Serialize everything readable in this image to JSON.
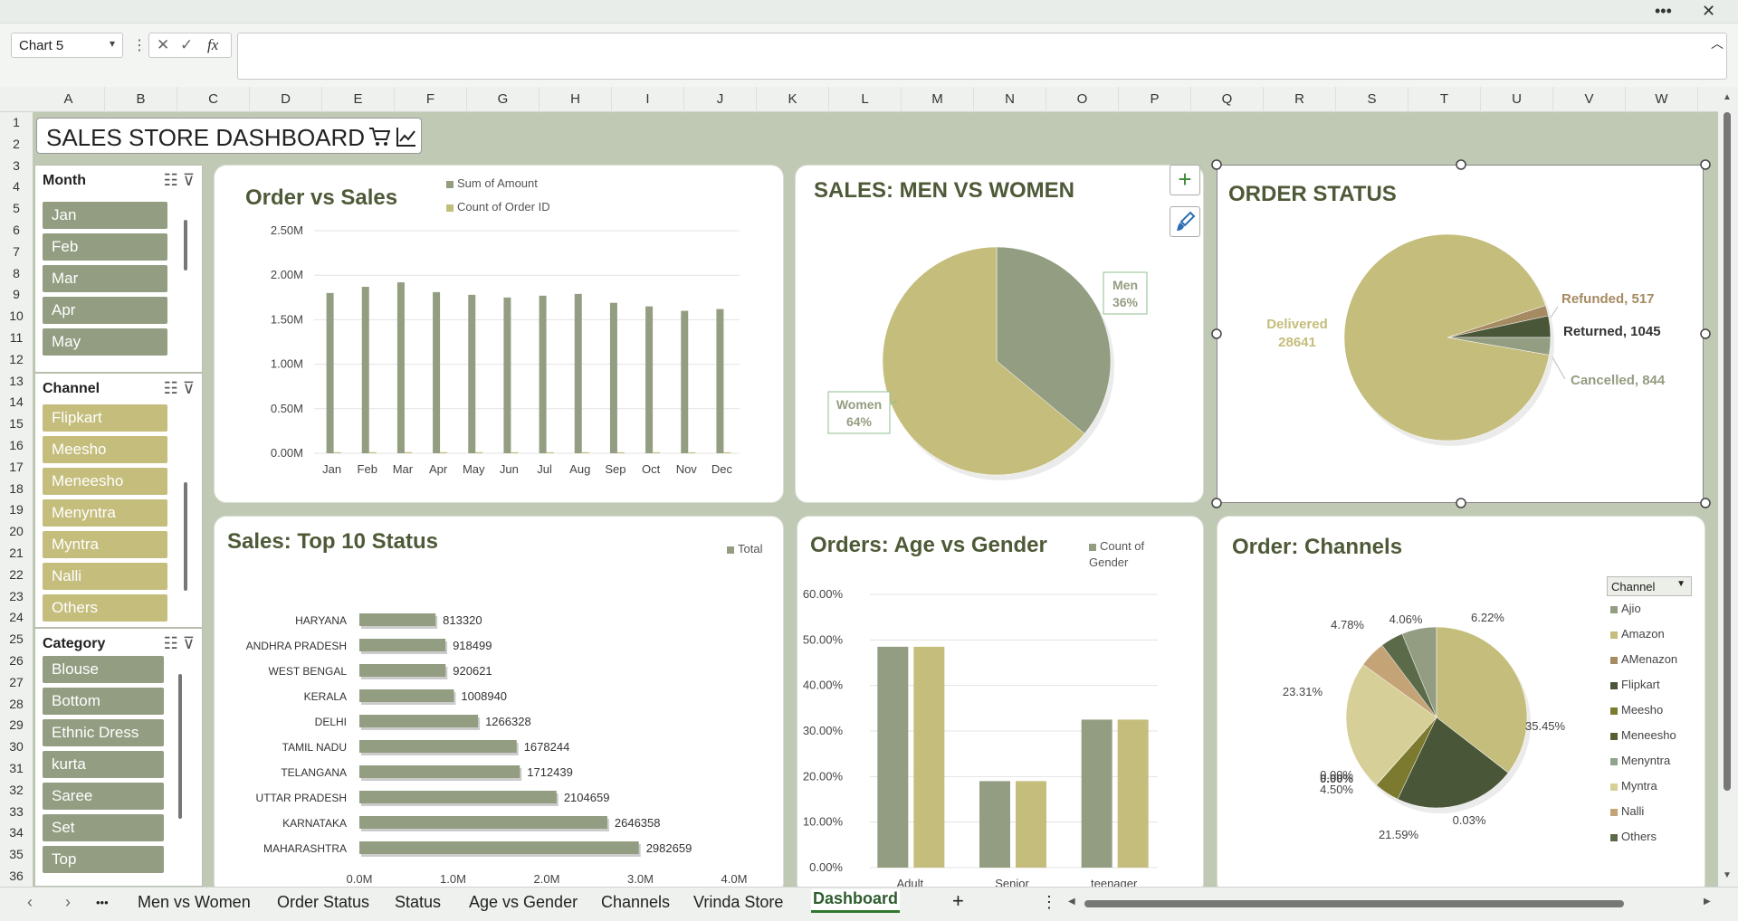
{
  "window": {
    "more_icon": "more-horizontal-icon",
    "close_icon": "close-icon"
  },
  "formula_bar": {
    "name_box": "Chart 5",
    "fx_label": "fx",
    "formula": ""
  },
  "columns": [
    "A",
    "B",
    "C",
    "D",
    "E",
    "F",
    "G",
    "H",
    "I",
    "J",
    "K",
    "L",
    "M",
    "N",
    "O",
    "P",
    "Q",
    "R",
    "S",
    "T",
    "U",
    "V",
    "W"
  ],
  "rows": [
    "1",
    "2",
    "3",
    "4",
    "5",
    "6",
    "7",
    "8",
    "9",
    "10",
    "11",
    "12",
    "13",
    "14",
    "15",
    "16",
    "17",
    "18",
    "19",
    "20",
    "21",
    "22",
    "23",
    "24",
    "25",
    "26",
    "27",
    "28",
    "29",
    "30",
    "31",
    "32",
    "33",
    "34",
    "35",
    "36"
  ],
  "dashboard": {
    "title": "SALES STORE DASHBOARD",
    "title_icons": [
      "cart-icon",
      "line-chart-icon"
    ]
  },
  "slicers": {
    "month": {
      "header": "Month",
      "items": [
        "Jan",
        "Feb",
        "Mar",
        "Apr",
        "May"
      ]
    },
    "channel": {
      "header": "Channel",
      "items": [
        "Flipkart",
        "Meesho",
        "Meneesho",
        "Menyntra",
        "Myntra",
        "Nalli",
        "Others"
      ]
    },
    "category": {
      "header": "Category",
      "items": [
        "Blouse",
        "Bottom",
        "Ethnic Dress",
        "kurta",
        "Saree",
        "Set",
        "Top"
      ]
    }
  },
  "colors": {
    "olive": "#939d81",
    "sand": "#c4bd7c",
    "bg": "#c0c9b4",
    "dark": "#4e5a37"
  },
  "chart_data": [
    {
      "id": "order_vs_sales",
      "type": "bar",
      "title": "Order vs Sales",
      "categories": [
        "Jan",
        "Feb",
        "Mar",
        "Apr",
        "May",
        "Jun",
        "Jul",
        "Aug",
        "Sep",
        "Oct",
        "Nov",
        "Dec"
      ],
      "series": [
        {
          "name": "Sum of Amount",
          "values": [
            1800000,
            1870000,
            1920000,
            1810000,
            1780000,
            1750000,
            1770000,
            1790000,
            1690000,
            1650000,
            1600000,
            1620000
          ]
        },
        {
          "name": "Count of Order ID",
          "values": [
            12000,
            12500,
            12800,
            12100,
            11900,
            11700,
            11800,
            11900,
            11300,
            11000,
            10700,
            10800
          ]
        }
      ],
      "ylim": [
        0,
        2500000
      ],
      "yticks": [
        "0.00M",
        "0.50M",
        "1.00M",
        "1.50M",
        "2.00M",
        "2.50M"
      ]
    },
    {
      "id": "men_vs_women",
      "type": "pie",
      "title": "SALES: MEN VS WOMEN",
      "labels": [
        "Men",
        "Women"
      ],
      "values": [
        36,
        64
      ],
      "data_labels": [
        "36%",
        "64%"
      ]
    },
    {
      "id": "order_status",
      "type": "pie",
      "title": "ORDER STATUS",
      "labels": [
        "Delivered",
        "Refunded",
        "Returned",
        "Cancelled"
      ],
      "values": [
        28641,
        517,
        1045,
        844
      ],
      "data_labels": [
        "Delivered,\n28641",
        "Refunded, 517",
        "Returned, 1045",
        "Cancelled, 844"
      ]
    },
    {
      "id": "top10_states",
      "type": "bar",
      "orientation": "horizontal",
      "title": "Sales: Top 10 Status",
      "legend": [
        "Total"
      ],
      "categories": [
        "HARYANA",
        "ANDHRA PRADESH",
        "WEST BENGAL",
        "KERALA",
        "DELHI",
        "TAMIL NADU",
        "TELANGANA",
        "UTTAR PRADESH",
        "KARNATAKA",
        "MAHARASHTRA"
      ],
      "values": [
        813320,
        918499,
        920621,
        1008940,
        1266328,
        1678244,
        1712439,
        2104659,
        2646358,
        2982659
      ],
      "xlim": [
        0,
        4000000
      ],
      "xticks": [
        "0.0M",
        "1.0M",
        "2.0M",
        "3.0M",
        "4.0M"
      ]
    },
    {
      "id": "age_vs_gender",
      "type": "bar",
      "title": "Orders: Age vs Gender",
      "legend": [
        "Count of Gender"
      ],
      "categories": [
        "Adult",
        "Senior",
        "teenager"
      ],
      "series": [
        {
          "name": "",
          "values": [
            48.5,
            19.0,
            32.5
          ]
        },
        {
          "name": "",
          "values": [
            48.5,
            19.0,
            32.5
          ]
        }
      ],
      "ylim": [
        0,
        60
      ],
      "yticks": [
        "0.00%",
        "10.00%",
        "20.00%",
        "30.00%",
        "40.00%",
        "50.00%",
        "60.00%"
      ]
    },
    {
      "id": "channels",
      "type": "pie",
      "title": "Order: Channels",
      "legend_header": "Channel",
      "labels": [
        "Ajio",
        "Amazon",
        "AMenazon",
        "Flipkart",
        "Meesho",
        "Meneesho",
        "Menyntra",
        "Myntra",
        "Nalli",
        "Others"
      ],
      "values": [
        6.22,
        35.45,
        0.03,
        21.59,
        4.5,
        0.0,
        0.06,
        23.31,
        4.78,
        4.06
      ],
      "data_labels": [
        "6.22%",
        "35.45%",
        "0.03%",
        "21.59%",
        "4.50%",
        "0.00%",
        "0.06%",
        "23.31%",
        "4.78%",
        "4.06%"
      ]
    }
  ],
  "sheet_tabs": {
    "nav": [
      "‹",
      "›",
      "•••"
    ],
    "tabs": [
      "Men vs Women",
      "Order Status",
      "Status",
      "Age vs Gender",
      "Channels",
      "Vrinda Store",
      "Dashboard"
    ],
    "active": "Dashboard",
    "add": "+"
  }
}
